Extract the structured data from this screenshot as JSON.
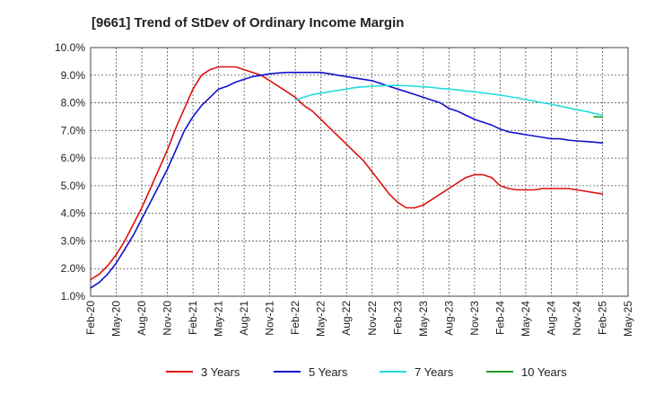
{
  "chart_data": {
    "type": "line",
    "title": "[9661]  Trend of StDev of Ordinary Income Margin",
    "xlabel": "",
    "ylabel": "",
    "x_tick_labels": [
      "Feb-20",
      "May-20",
      "Aug-20",
      "Nov-20",
      "Feb-21",
      "May-21",
      "Aug-21",
      "Nov-21",
      "Feb-22",
      "May-22",
      "Aug-22",
      "Nov-22",
      "Feb-23",
      "May-23",
      "Aug-23",
      "Nov-23",
      "Feb-24",
      "May-24",
      "Aug-24",
      "Nov-24",
      "Feb-25",
      "May-25"
    ],
    "y_tick_labels": [
      "1.0%",
      "2.0%",
      "3.0%",
      "4.0%",
      "5.0%",
      "6.0%",
      "7.0%",
      "8.0%",
      "9.0%",
      "10.0%"
    ],
    "ylim": [
      1.0,
      10.0
    ],
    "grid": true,
    "legend_position": "bottom",
    "series": [
      {
        "name": "3 Years",
        "color": "#dd1111",
        "x": [
          "Feb-20",
          "Mar-20",
          "Apr-20",
          "May-20",
          "Jun-20",
          "Jul-20",
          "Aug-20",
          "Sep-20",
          "Oct-20",
          "Nov-20",
          "Dec-20",
          "Jan-21",
          "Feb-21",
          "Mar-21",
          "Apr-21",
          "May-21",
          "Jun-21",
          "Jul-21",
          "Aug-21",
          "Sep-21",
          "Oct-21",
          "Nov-21",
          "Dec-21",
          "Jan-22",
          "Feb-22",
          "Mar-22",
          "Apr-22",
          "May-22",
          "Jun-22",
          "Jul-22",
          "Aug-22",
          "Sep-22",
          "Oct-22",
          "Nov-22",
          "Dec-22",
          "Jan-23",
          "Feb-23",
          "Mar-23",
          "Apr-23",
          "May-23",
          "Jun-23",
          "Jul-23",
          "Aug-23",
          "Sep-23",
          "Oct-23",
          "Nov-23",
          "Dec-23",
          "Jan-24",
          "Feb-24",
          "Mar-24",
          "Apr-24",
          "May-24",
          "Jun-24",
          "Jul-24",
          "Aug-24",
          "Sep-24",
          "Oct-24",
          "Nov-24",
          "Dec-24",
          "Jan-25",
          "Feb-25"
        ],
        "values": [
          1.6,
          1.8,
          2.1,
          2.5,
          3.0,
          3.6,
          4.2,
          4.9,
          5.6,
          6.3,
          7.1,
          7.8,
          8.5,
          9.0,
          9.2,
          9.3,
          9.3,
          9.3,
          9.2,
          9.1,
          9.0,
          8.8,
          8.6,
          8.4,
          8.2,
          7.9,
          7.7,
          7.4,
          7.1,
          6.8,
          6.5,
          6.2,
          5.9,
          5.5,
          5.1,
          4.7,
          4.4,
          4.2,
          4.2,
          4.3,
          4.5,
          4.7,
          4.9,
          5.1,
          5.3,
          5.4,
          5.4,
          5.3,
          5.0,
          4.9,
          4.85,
          4.85,
          4.85,
          4.9,
          4.9,
          4.9,
          4.9,
          4.85,
          4.8,
          4.75,
          4.7
        ]
      },
      {
        "name": "5 Years",
        "color": "#1111cc",
        "x": [
          "Feb-20",
          "Mar-20",
          "Apr-20",
          "May-20",
          "Jun-20",
          "Jul-20",
          "Aug-20",
          "Sep-20",
          "Oct-20",
          "Nov-20",
          "Dec-20",
          "Jan-21",
          "Feb-21",
          "Mar-21",
          "Apr-21",
          "May-21",
          "Jun-21",
          "Jul-21",
          "Aug-21",
          "Sep-21",
          "Oct-21",
          "Nov-21",
          "Dec-21",
          "Jan-22",
          "Feb-22",
          "Mar-22",
          "Apr-22",
          "May-22",
          "Jun-22",
          "Jul-22",
          "Aug-22",
          "Sep-22",
          "Oct-22",
          "Nov-22",
          "Dec-22",
          "Jan-23",
          "Feb-23",
          "Mar-23",
          "Apr-23",
          "May-23",
          "Jun-23",
          "Jul-23",
          "Aug-23",
          "Sep-23",
          "Oct-23",
          "Nov-23",
          "Dec-23",
          "Jan-24",
          "Feb-24",
          "Mar-24",
          "Apr-24",
          "May-24",
          "Jun-24",
          "Jul-24",
          "Aug-24",
          "Sep-24",
          "Oct-24",
          "Nov-24",
          "Dec-24",
          "Jan-25",
          "Feb-25"
        ],
        "values": [
          1.3,
          1.5,
          1.8,
          2.2,
          2.7,
          3.2,
          3.8,
          4.4,
          5.0,
          5.6,
          6.3,
          7.0,
          7.5,
          7.9,
          8.2,
          8.5,
          8.6,
          8.75,
          8.85,
          8.95,
          9.0,
          9.05,
          9.08,
          9.1,
          9.1,
          9.1,
          9.1,
          9.1,
          9.05,
          9.0,
          8.95,
          8.9,
          8.85,
          8.8,
          8.7,
          8.6,
          8.5,
          8.4,
          8.3,
          8.2,
          8.1,
          8.0,
          7.8,
          7.7,
          7.55,
          7.4,
          7.3,
          7.2,
          7.05,
          6.95,
          6.9,
          6.85,
          6.8,
          6.75,
          6.7,
          6.7,
          6.65,
          6.62,
          6.6,
          6.58,
          6.55
        ]
      },
      {
        "name": "7 Years",
        "color": "#22dddd",
        "x": [
          "Feb-22",
          "Mar-22",
          "Apr-22",
          "May-22",
          "Jun-22",
          "Jul-22",
          "Aug-22",
          "Sep-22",
          "Oct-22",
          "Nov-22",
          "Dec-22",
          "Jan-23",
          "Feb-23",
          "Mar-23",
          "Apr-23",
          "May-23",
          "Jun-23",
          "Jul-23",
          "Aug-23",
          "Sep-23",
          "Oct-23",
          "Nov-23",
          "Dec-23",
          "Jan-24",
          "Feb-24",
          "Mar-24",
          "Apr-24",
          "May-24",
          "Jun-24",
          "Jul-24",
          "Aug-24",
          "Sep-24",
          "Oct-24",
          "Nov-24",
          "Dec-24",
          "Jan-25",
          "Feb-25"
        ],
        "values": [
          8.1,
          8.2,
          8.3,
          8.35,
          8.4,
          8.45,
          8.5,
          8.55,
          8.58,
          8.6,
          8.62,
          8.63,
          8.63,
          8.62,
          8.6,
          8.58,
          8.56,
          8.52,
          8.5,
          8.47,
          8.43,
          8.4,
          8.36,
          8.32,
          8.28,
          8.23,
          8.18,
          8.12,
          8.06,
          8.0,
          7.95,
          7.88,
          7.82,
          7.75,
          7.7,
          7.62,
          7.55
        ]
      },
      {
        "name": "10 Years",
        "color": "#229922",
        "x": [
          "Jan-25",
          "Feb-25"
        ],
        "values": [
          7.5,
          7.48
        ]
      }
    ]
  }
}
